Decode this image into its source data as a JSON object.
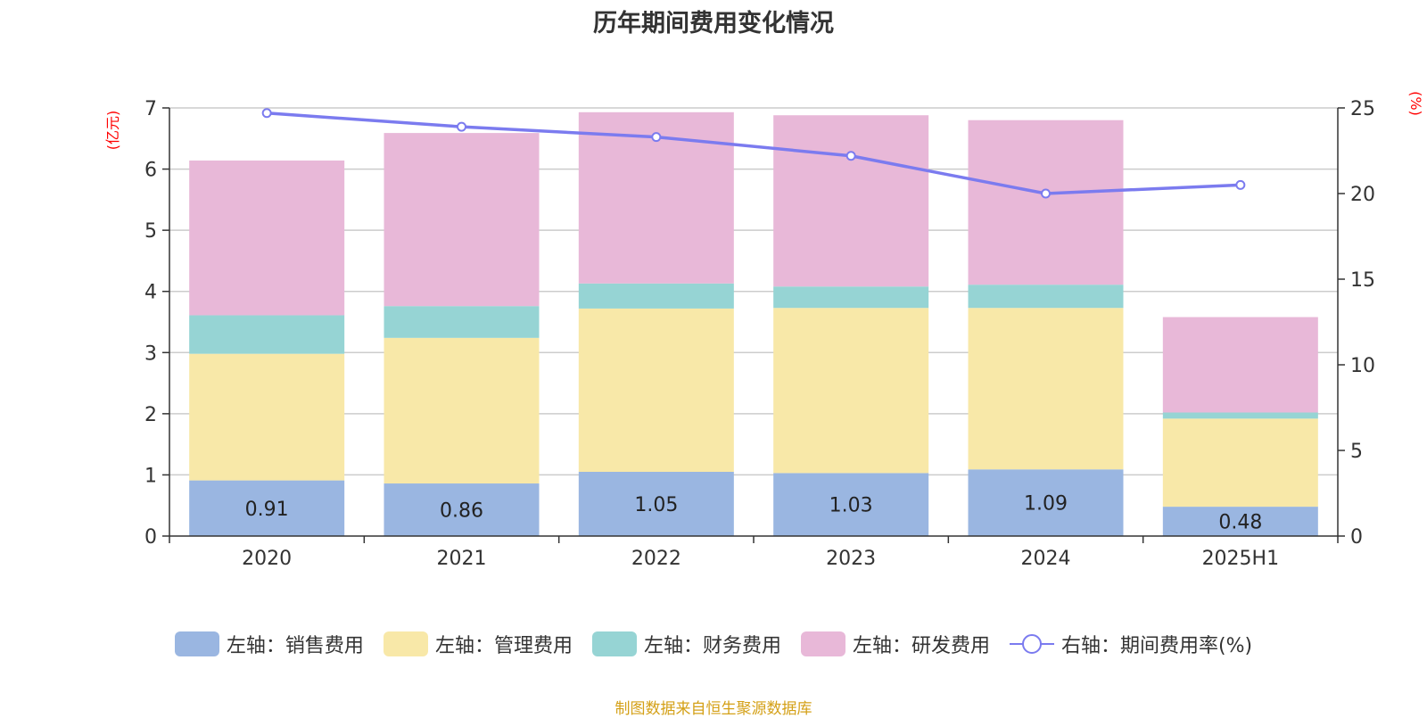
{
  "title": "历年期间费用变化情况",
  "source": "制图数据来自恒生聚源数据库",
  "colors": {
    "sales": "#9ab6e1",
    "admin": "#f8e8a8",
    "finance": "#96d4d4",
    "rd": "#e8b8d8",
    "rate_line": "#7b7bef",
    "grid": "#cccccc",
    "axis": "#333333",
    "unit": "#ff0000"
  },
  "legend": [
    {
      "label": "左轴：销售费用",
      "color": "#9ab6e1",
      "kind": "bar"
    },
    {
      "label": "左轴：管理费用",
      "color": "#f8e8a8",
      "kind": "bar"
    },
    {
      "label": "左轴：财务费用",
      "color": "#96d4d4",
      "kind": "bar"
    },
    {
      "label": "左轴：研发费用",
      "color": "#e8b8d8",
      "kind": "bar"
    },
    {
      "label": "右轴：期间费用率(%)",
      "color": "#7b7bef",
      "kind": "line"
    }
  ],
  "chart_data": {
    "type": "bar",
    "stacked": true,
    "title": "历年期间费用变化情况",
    "categories": [
      "2020",
      "2021",
      "2022",
      "2023",
      "2024",
      "2025H1"
    ],
    "left_axis": {
      "unit": "(亿元)",
      "ylim": [
        0,
        7
      ],
      "ticks": [
        0,
        1,
        2,
        3,
        4,
        5,
        6,
        7
      ]
    },
    "right_axis": {
      "unit": "(%)",
      "ylim": [
        0,
        25
      ],
      "ticks": [
        0,
        5,
        10,
        15,
        20,
        25
      ]
    },
    "grid": true,
    "legend_position": "bottom",
    "series": [
      {
        "name": "左轴：销售费用",
        "axis": "left",
        "values": [
          0.91,
          0.86,
          1.05,
          1.03,
          1.09,
          0.48
        ],
        "show_labels": true
      },
      {
        "name": "左轴：管理费用",
        "axis": "left",
        "values": [
          2.07,
          2.38,
          2.67,
          2.7,
          2.64,
          1.44
        ]
      },
      {
        "name": "左轴：财务费用",
        "axis": "left",
        "values": [
          0.63,
          0.52,
          0.41,
          0.35,
          0.38,
          0.1
        ]
      },
      {
        "name": "左轴：研发费用",
        "axis": "left",
        "values": [
          2.53,
          2.83,
          2.8,
          2.8,
          2.69,
          1.56
        ]
      },
      {
        "name": "右轴：期间费用率(%)",
        "axis": "right",
        "type": "line",
        "values": [
          24.7,
          23.9,
          23.3,
          22.2,
          20.0,
          20.5
        ]
      }
    ]
  }
}
